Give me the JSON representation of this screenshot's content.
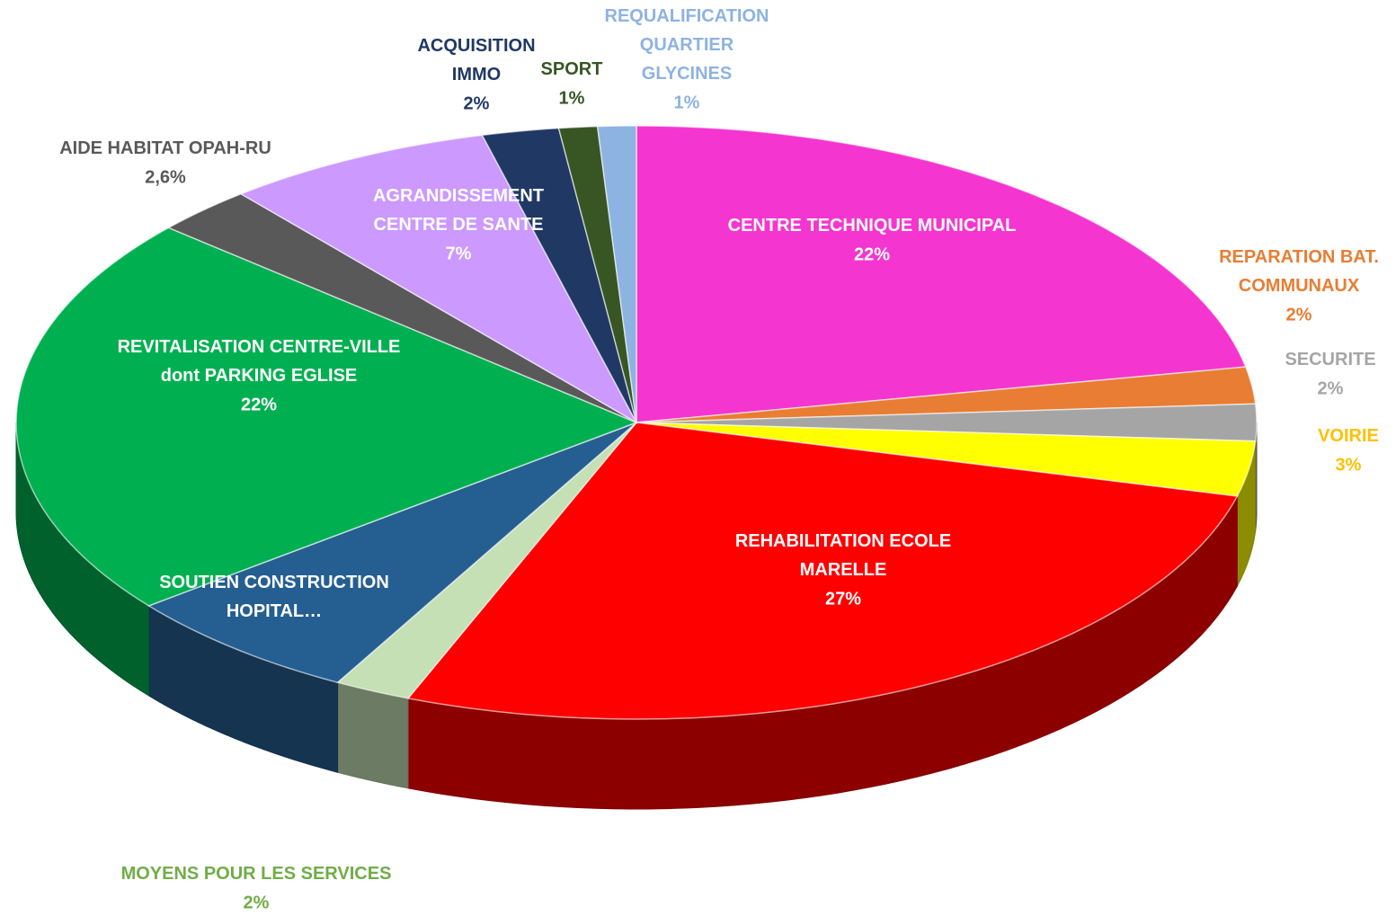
{
  "chart_data": {
    "type": "pie3d",
    "categories": [
      "CENTRE TECHNIQUE MUNICIPAL",
      "REPARATION BAT.\nCOMMUNAUX",
      "SECURITE",
      "VOIRIE",
      "REHABILITATION ECOLE\nMARELLE",
      "MOYENS POUR LES SERVICES",
      "SOUTIEN CONSTRUCTION\nHOPITAL…",
      "REVITALISATION CENTRE-VILLE\ndont PARKING EGLISE",
      "AIDE HABITAT OPAH-RU",
      "AGRANDISSEMENT\nCENTRE DE SANTE",
      "ACQUISITION\nIMMO",
      "SPORT",
      "REQUALIFICATION\nQUARTIER\nGLYCINES"
    ],
    "values": [
      22,
      2,
      2,
      3,
      27,
      2,
      6.4,
      22,
      2.6,
      7,
      2,
      1,
      1
    ],
    "value_labels": [
      "22%",
      "2%",
      "2%",
      "3%",
      "27%",
      "2%",
      null,
      "22%",
      "2,6%",
      "7%",
      "2%",
      "1%",
      "1%"
    ],
    "colors": [
      "#f535d0",
      "#e97d33",
      "#a5a5a5",
      "#ffff00",
      "#ff0000",
      "#c5e0b4",
      "#255e91",
      "#00b050",
      "#595959",
      "#cc99ff",
      "#203864",
      "#375623",
      "#8db3e2"
    ],
    "label_colors": [
      "#ffffff",
      "#e97d33",
      "#a5a5a5",
      "#ffc000",
      "#ffffff",
      "#70ad47",
      "#ffffff",
      "#ffffff",
      "#595959",
      "#ffffff",
      "#203864",
      "#375623",
      "#8db3e2"
    ]
  }
}
